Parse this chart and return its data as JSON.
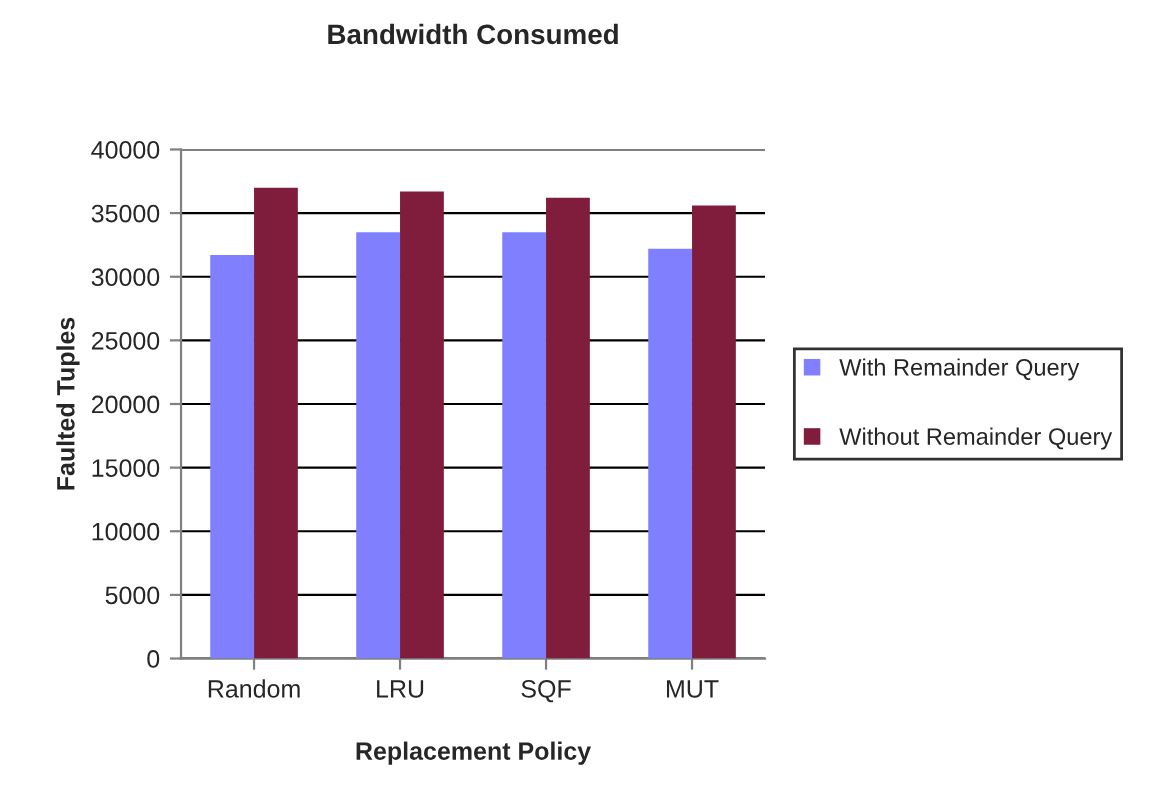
{
  "chart_data": {
    "type": "bar",
    "title": "Bandwidth Consumed",
    "xlabel": "Replacement Policy",
    "ylabel": "Faulted Tuples",
    "categories": [
      "Random",
      "LRU",
      "SQF",
      "MUT"
    ],
    "series": [
      {
        "name": "With Remainder Query",
        "color": "#8080ff",
        "values": [
          31700,
          33500,
          33500,
          32200
        ]
      },
      {
        "name": "Without Remainder Query",
        "color": "#801c3c",
        "values": [
          37000,
          36700,
          36200,
          35600
        ]
      }
    ],
    "ylim": [
      0,
      40000
    ],
    "yticks": [
      0,
      5000,
      10000,
      15000,
      20000,
      25000,
      30000,
      35000,
      40000
    ],
    "grid": "y",
    "legend": "right"
  }
}
